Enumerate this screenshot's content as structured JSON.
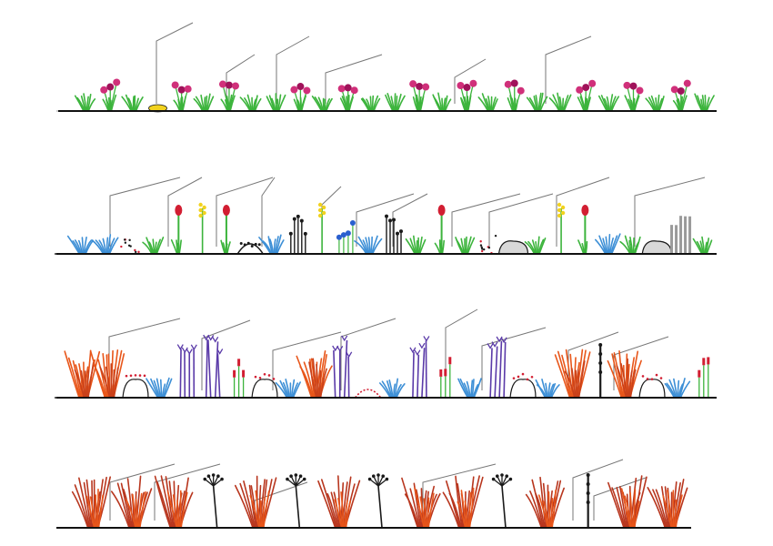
{
  "diagram": {
    "palette": {
      "magenta": "#a0125a",
      "pink": "#d0307a",
      "green": "#3cb43c",
      "yellow": "#f2d21e",
      "blue": "#2a5fcf",
      "lightblue": "#3d8fd6",
      "red": "#d21e32",
      "purple": "#5a3aa8",
      "orange": "#e8561a",
      "darkorange": "#c8401a",
      "rust": "#b8361e",
      "black": "#1a1a1a",
      "gray": "#9a9a9a",
      "leader": "#777777",
      "ground": "#111111"
    },
    "rows": [
      {
        "id": "row-1",
        "plants": [
          "grass",
          "flower-magenta",
          "grass",
          "yellow-mound",
          "flower-magenta",
          "grass",
          "flower-magenta",
          "grass",
          "grass",
          "flower-magenta",
          "grass",
          "flower-magenta",
          "grass",
          "grass",
          "flower-magenta",
          "grass",
          "flower-magenta",
          "grass",
          "flower-magenta",
          "grass",
          "grass",
          "flower-magenta",
          "grass",
          "flower-magenta",
          "grass",
          "flower-magenta",
          "grass"
        ]
      },
      {
        "id": "row-2",
        "plants": [
          "blue-tuft",
          "blue-tuft",
          "dots",
          "grass",
          "red-bud",
          "yellow-spike",
          "red-bud",
          "black-mound",
          "blue-tuft",
          "dark-stems",
          "yellow-spike",
          "blue-dots",
          "blue-tuft",
          "dark-stems",
          "grass",
          "red-bud",
          "grass",
          "dots",
          "rock",
          "grass",
          "yellow-spike",
          "red-bud",
          "blue-tuft",
          "grass",
          "rock",
          "gray-stems",
          "grass"
        ]
      },
      {
        "id": "row-3",
        "plants": [
          "orange-grass",
          "orange-grass",
          "outline-mound",
          "blue-tuft",
          "purple-stems",
          "purple-stems",
          "red-spike",
          "outline-mound",
          "blue-tuft",
          "orange-grass",
          "purple-stems",
          "red-mound",
          "blue-tuft",
          "purple-stems",
          "red-spike",
          "blue-tuft",
          "purple-stems",
          "outline-mound",
          "blue-tuft",
          "orange-grass",
          "black-stem",
          "orange-grass",
          "outline-mound",
          "blue-tuft",
          "red-spike"
        ]
      },
      {
        "id": "row-4",
        "plants": [
          "rust-grass",
          "rust-grass",
          "rust-grass",
          "black-umbel",
          "rust-grass",
          "black-umbel",
          "rust-grass",
          "black-umbel",
          "rust-grass",
          "rust-grass",
          "black-umbel",
          "rust-grass",
          "black-stem",
          "rust-grass",
          "rust-grass"
        ]
      }
    ]
  }
}
